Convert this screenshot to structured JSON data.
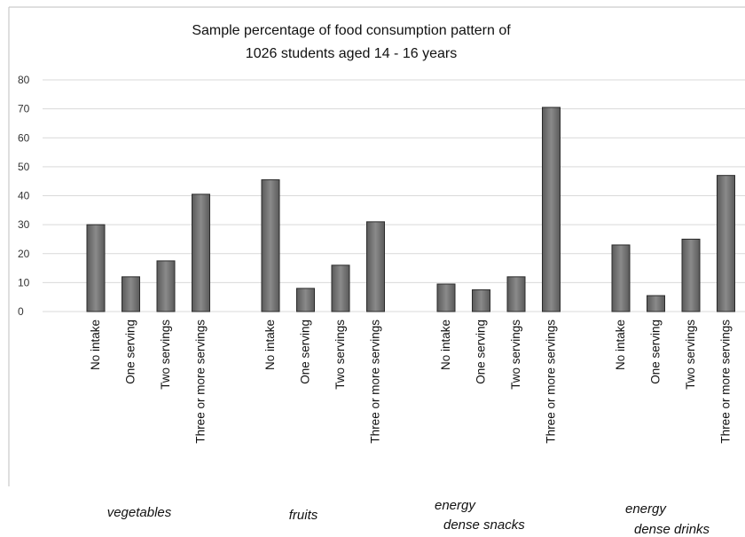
{
  "chart_data": {
    "type": "bar",
    "title_lines": [
      "Sample percentage of food consumption  pattern  of",
      "1026 students aged 14 - 16 years"
    ],
    "ylim": [
      0,
      80
    ],
    "yticks": [
      0,
      10,
      20,
      30,
      40,
      50,
      60,
      70,
      80
    ],
    "grid": true,
    "legend": "none",
    "bar_color": "#7f7f7f",
    "groups": [
      {
        "label_lines": [
          "vegetables"
        ],
        "categories": [
          "No intake",
          "One serving",
          "Two servings",
          "Three or more servings"
        ],
        "values": [
          30,
          12,
          17.5,
          40.5
        ]
      },
      {
        "label_lines": [
          "fruits"
        ],
        "categories": [
          "No intake",
          "One serving",
          "Two servings",
          "Three or more servings"
        ],
        "values": [
          45.5,
          8,
          16,
          31
        ]
      },
      {
        "label_lines": [
          "energy",
          "dense snacks"
        ],
        "categories": [
          "No intake",
          "One serving",
          "Two servings",
          "Three or more servings"
        ],
        "values": [
          9.5,
          7.5,
          12,
          70.5
        ]
      },
      {
        "label_lines": [
          "energy",
          "dense drinks"
        ],
        "categories": [
          "No intake",
          "One serving",
          "Two servings",
          "Three or more servings"
        ],
        "values": [
          23,
          5.5,
          25,
          47
        ]
      }
    ]
  }
}
